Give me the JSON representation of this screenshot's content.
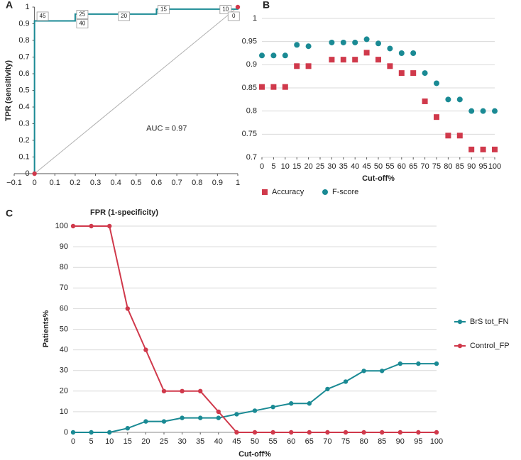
{
  "chart_data": [
    {
      "panel": "A",
      "type": "line",
      "xlabel": "FPR (1-specificity)",
      "ylabel": "TPR (sensitivity)",
      "xlim": [
        -0.1,
        1
      ],
      "ylim": [
        0,
        1
      ],
      "xticks": [
        {
          "value": -0.1,
          "label": "−0.1"
        },
        0,
        0.1,
        0.2,
        0.3,
        0.4,
        0.5,
        0.6,
        0.7,
        0.8,
        0.9,
        1
      ],
      "yticks": [
        0,
        0.1,
        0.2,
        0.3,
        0.4,
        0.5,
        0.6,
        0.7,
        0.8,
        0.9,
        1
      ],
      "grid": false,
      "diagonal": {
        "x": [
          0,
          1
        ],
        "values": [
          0,
          1
        ],
        "color": "#b0b0b0"
      },
      "series": [
        {
          "color": "#1a8a94",
          "markers": "ends",
          "marker_color": "#d0394b",
          "x": [
            0,
            0,
            0.2,
            0.2,
            0.6,
            0.6,
            1,
            1
          ],
          "values": [
            0,
            0.917,
            0.917,
            0.958,
            0.958,
            0.988,
            0.988,
            1
          ]
        }
      ],
      "annotations": [
        {
          "text": "45",
          "x": 0.04,
          "y": 0.945,
          "boxed": true
        },
        {
          "text": "25",
          "x": 0.235,
          "y": 0.955,
          "boxed": true
        },
        {
          "text": "40",
          "x": 0.235,
          "y": 0.9,
          "boxed": true
        },
        {
          "text": "20",
          "x": 0.44,
          "y": 0.945,
          "boxed": true
        },
        {
          "text": "15",
          "x": 0.635,
          "y": 0.985,
          "boxed": true
        },
        {
          "text": "10",
          "x": 0.94,
          "y": 0.985,
          "boxed": true
        },
        {
          "text": "0",
          "x": 0.98,
          "y": 0.945,
          "boxed": true
        },
        {
          "text": "AUC = 0.97",
          "x": 0.65,
          "y": 0.27,
          "boxed": false
        }
      ]
    },
    {
      "panel": "B",
      "type": "scatter",
      "xlabel": "Cut-off%",
      "xlim": [
        0,
        100
      ],
      "ylim": [
        0.7,
        1
      ],
      "xticks": [
        0,
        5,
        10,
        15,
        20,
        25,
        30,
        35,
        40,
        45,
        50,
        55,
        60,
        65,
        70,
        75,
        80,
        85,
        90,
        95,
        100
      ],
      "yticks": [
        0.7,
        0.75,
        0.8,
        0.85,
        0.9,
        0.95,
        1
      ],
      "grid": true,
      "legend": "bottom",
      "x": [
        0,
        5,
        10,
        15,
        20,
        25,
        30,
        35,
        40,
        45,
        50,
        55,
        60,
        65,
        70,
        75,
        80,
        85,
        90,
        95,
        100
      ],
      "series": [
        {
          "name": "Accuracy",
          "color": "#d0394b",
          "marker": "square",
          "values": [
            0.852,
            0.852,
            0.852,
            0.897,
            0.897,
            null,
            0.911,
            0.911,
            0.911,
            0.926,
            0.911,
            0.897,
            0.882,
            0.882,
            0.821,
            0.787,
            0.747,
            0.747,
            0.717,
            0.717,
            0.717
          ]
        },
        {
          "name": "F-score",
          "color": "#1a8a94",
          "marker": "circle",
          "values": [
            0.92,
            0.92,
            0.92,
            0.943,
            0.94,
            null,
            0.948,
            0.948,
            0.948,
            0.955,
            0.946,
            0.935,
            0.925,
            0.925,
            0.882,
            0.86,
            0.825,
            0.825,
            0.8,
            0.8,
            0.8
          ]
        }
      ]
    },
    {
      "panel": "C",
      "type": "line",
      "xlabel": "Cut-off%",
      "ylabel": "Patients%",
      "xlim": [
        0,
        100
      ],
      "ylim": [
        0,
        100
      ],
      "xticks": [
        0,
        5,
        10,
        15,
        20,
        25,
        30,
        35,
        40,
        45,
        50,
        55,
        60,
        65,
        70,
        75,
        80,
        85,
        90,
        95,
        100
      ],
      "yticks": [
        0,
        10,
        20,
        30,
        40,
        50,
        60,
        70,
        80,
        90,
        100
      ],
      "grid": true,
      "legend": "right",
      "series": [
        {
          "name": "BrS tot_FN",
          "color": "#1a8a94",
          "markers": "all",
          "x": [
            0,
            5,
            10,
            15,
            20,
            25,
            30,
            35,
            40,
            45,
            50,
            55,
            60,
            65,
            70,
            75,
            80,
            85,
            90,
            95,
            100
          ],
          "values": [
            0,
            0,
            0,
            2,
            5.3,
            5.3,
            7,
            7,
            7,
            8.8,
            10.5,
            12.3,
            14,
            14,
            21,
            24.6,
            29.8,
            29.8,
            33.3,
            33.3,
            33.3
          ]
        },
        {
          "name": "Control_FP",
          "color": "#d0394b",
          "markers": "all",
          "x": [
            0,
            5,
            10,
            15,
            20,
            25,
            30,
            35,
            40,
            45,
            50,
            55,
            60,
            65,
            70,
            75,
            80,
            85,
            90,
            95,
            100
          ],
          "values": [
            100,
            100,
            100,
            60,
            40,
            20,
            20,
            20,
            10,
            0,
            0,
            0,
            0,
            0,
            0,
            0,
            0,
            0,
            0,
            0,
            0
          ]
        }
      ]
    }
  ]
}
